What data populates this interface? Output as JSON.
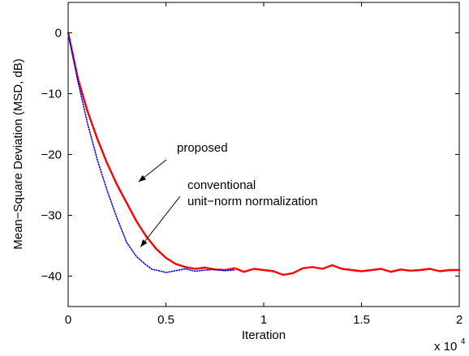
{
  "chart_data": {
    "type": "line",
    "title": "",
    "xlabel": "Iteration",
    "ylabel": "Mean−Square Deviation (MSD, dB)",
    "x_multiplier": {
      "base": "x 10",
      "exponent": "4"
    },
    "xlim": [
      0,
      2
    ],
    "ylim": [
      -45,
      5
    ],
    "x_ticks": [
      0,
      0.5,
      1,
      1.5,
      2
    ],
    "x_tick_labels": [
      "0",
      "0.5",
      "1",
      "1.5",
      "2"
    ],
    "y_ticks": [
      0,
      -10,
      -20,
      -30,
      -40
    ],
    "y_tick_labels": [
      "0",
      "−10",
      "−20",
      "−30",
      "−40"
    ],
    "grid": false,
    "series": [
      {
        "name": "proposed",
        "color": "#ff0000",
        "style": "solid",
        "x": [
          0,
          0.05,
          0.1,
          0.15,
          0.2,
          0.25,
          0.3,
          0.35,
          0.4,
          0.45,
          0.5,
          0.55,
          0.6,
          0.65,
          0.7,
          0.75,
          0.8,
          0.85,
          0.9,
          0.95,
          1.0,
          1.05,
          1.1,
          1.15,
          1.2,
          1.25,
          1.3,
          1.35,
          1.4,
          1.45,
          1.5,
          1.55,
          1.6,
          1.65,
          1.7,
          1.75,
          1.8,
          1.85,
          1.9,
          1.95,
          2.0
        ],
        "y": [
          0,
          -7.5,
          -13,
          -17.5,
          -21.5,
          -25,
          -28,
          -31,
          -33.5,
          -35.5,
          -37,
          -38,
          -38.5,
          -38.8,
          -38.6,
          -38.9,
          -39,
          -38.7,
          -39.3,
          -38.8,
          -39,
          -39.2,
          -39.8,
          -39.5,
          -38.7,
          -38.5,
          -38.8,
          -38.2,
          -38.8,
          -39,
          -39.2,
          -39,
          -38.8,
          -39.3,
          -38.9,
          -39.1,
          -39,
          -38.8,
          -39.2,
          -39,
          -39
        ]
      },
      {
        "name": "conventional unit−norm normalization",
        "color": "#0000ff",
        "style": "dotted",
        "x": [
          0,
          0.05,
          0.1,
          0.15,
          0.2,
          0.25,
          0.3,
          0.35,
          0.4,
          0.43,
          0.45,
          0.5,
          0.55,
          0.6,
          0.65,
          0.7,
          0.75,
          0.8,
          0.85
        ],
        "y": [
          0,
          -8,
          -15,
          -21,
          -26,
          -30.5,
          -34.5,
          -36.8,
          -38.2,
          -38.9,
          -39.0,
          -39.4,
          -39.1,
          -38.8,
          -39.2,
          -39.0,
          -38.9,
          -39.1,
          -39.0
        ]
      }
    ],
    "annotations": [
      {
        "text": "proposed",
        "lines": [
          "proposed"
        ],
        "target_series": 0
      },
      {
        "text": "conventional unit−norm normalization",
        "lines": [
          "conventional",
          "unit−norm normalization"
        ],
        "target_series": 1
      }
    ]
  }
}
